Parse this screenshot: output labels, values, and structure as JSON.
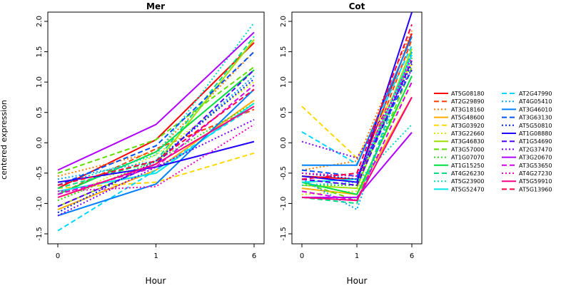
{
  "ylabel": "centered expression",
  "chart_data": [
    {
      "type": "line",
      "title": "Mer",
      "xlabel": "Hour",
      "ylabel": "centered expression",
      "x": [
        "0",
        "1",
        "6"
      ],
      "ylim": [
        -1.5,
        2.0
      ],
      "yticks": [
        "-1.5",
        "-1.0",
        "-0.5",
        "0.0",
        "0.5",
        "1.0",
        "1.5",
        "2.0"
      ],
      "series": [
        {
          "name": "AT5G08180",
          "values": [
            -0.75,
            0.05,
            1.65
          ]
        },
        {
          "name": "AT2G29890",
          "values": [
            -0.85,
            -0.1,
            0.55
          ]
        },
        {
          "name": "AT3G18160",
          "values": [
            -0.55,
            -0.15,
            1.5
          ]
        },
        {
          "name": "AT5G48600",
          "values": [
            -1.1,
            -0.45,
            0.7
          ]
        },
        {
          "name": "AT3G03920",
          "values": [
            -0.75,
            -0.65,
            -0.17
          ]
        },
        {
          "name": "AT3G22660",
          "values": [
            -0.95,
            -0.2,
            1.0
          ]
        },
        {
          "name": "AT3G46830",
          "values": [
            -1.05,
            -0.35,
            1.7
          ]
        },
        {
          "name": "AT3G57000",
          "values": [
            -0.5,
            0.05,
            1.25
          ]
        },
        {
          "name": "AT1G07070",
          "values": [
            -0.95,
            -0.3,
            0.65
          ]
        },
        {
          "name": "AT1G15250",
          "values": [
            -0.85,
            -0.15,
            1.2
          ]
        },
        {
          "name": "AT4G26230",
          "values": [
            -0.75,
            -0.3,
            1.75
          ]
        },
        {
          "name": "AT5G23900",
          "values": [
            -0.7,
            -0.2,
            1.98
          ]
        },
        {
          "name": "AT5G52470",
          "values": [
            -0.8,
            -0.5,
            0.65
          ]
        },
        {
          "name": "AT2G47990",
          "values": [
            -1.45,
            -0.45,
            0.6
          ]
        },
        {
          "name": "AT4G05410",
          "values": [
            -0.6,
            -0.3,
            1.1
          ]
        },
        {
          "name": "AT3G46010",
          "values": [
            -1.2,
            -0.68,
            0.88
          ]
        },
        {
          "name": "AT3G63130",
          "values": [
            -0.7,
            -0.05,
            1.5
          ]
        },
        {
          "name": "AT5G50810",
          "values": [
            -1.15,
            -0.3,
            1.05
          ]
        },
        {
          "name": "AT1G08880",
          "values": [
            -0.65,
            -0.4,
            0.02
          ]
        },
        {
          "name": "AT1G54690",
          "values": [
            -1.05,
            -0.35,
            1.2
          ]
        },
        {
          "name": "AT2G37470",
          "values": [
            -1.2,
            -0.4,
            0.38
          ]
        },
        {
          "name": "AT3G20670",
          "values": [
            -0.45,
            0.3,
            1.82
          ]
        },
        {
          "name": "AT3G53650",
          "values": [
            -0.85,
            -0.4,
            0.95
          ]
        },
        {
          "name": "AT4G27230",
          "values": [
            -0.8,
            -0.72,
            0.3
          ]
        },
        {
          "name": "AT5G59910",
          "values": [
            -0.9,
            -0.35,
            0.6
          ]
        },
        {
          "name": "AT5G13960",
          "values": [
            -0.7,
            -0.3,
            0.88
          ]
        }
      ]
    },
    {
      "type": "line",
      "title": "Cot",
      "xlabel": "Hour",
      "x": [
        "0",
        "1",
        "6"
      ],
      "ylim": [
        -1.5,
        2.0
      ],
      "yticks": [
        "-1.5",
        "-1.0",
        "-0.5",
        "0.0",
        "0.5",
        "1.0",
        "1.5",
        "2.0"
      ],
      "series": [
        {
          "name": "AT5G08180",
          "values": [
            -0.55,
            -0.6,
            1.8
          ]
        },
        {
          "name": "AT2G29890",
          "values": [
            -0.6,
            -0.7,
            1.7
          ]
        },
        {
          "name": "AT3G18160",
          "values": [
            -0.45,
            -0.3,
            1.85
          ]
        },
        {
          "name": "AT5G48600",
          "values": [
            -0.75,
            -0.85,
            0.75
          ]
        },
        {
          "name": "AT3G03920",
          "values": [
            0.6,
            -0.25,
            1.3
          ]
        },
        {
          "name": "AT3G22660",
          "values": [
            -0.85,
            -0.8,
            1.0
          ]
        },
        {
          "name": "AT3G46830",
          "values": [
            -0.7,
            -0.75,
            1.55
          ]
        },
        {
          "name": "AT3G57000",
          "values": [
            -0.65,
            -0.95,
            1.25
          ]
        },
        {
          "name": "AT1G07070",
          "values": [
            -0.7,
            -0.7,
            1.4
          ]
        },
        {
          "name": "AT1G15250",
          "values": [
            -0.65,
            -0.85,
            1.1
          ]
        },
        {
          "name": "AT4G26230",
          "values": [
            -0.9,
            -1.0,
            1.5
          ]
        },
        {
          "name": "AT5G23900",
          "values": [
            -0.7,
            -0.65,
            0.3
          ]
        },
        {
          "name": "AT5G52470",
          "values": [
            -0.65,
            -0.6,
            1.45
          ]
        },
        {
          "name": "AT2G47990",
          "values": [
            0.18,
            -0.35,
            1.6
          ]
        },
        {
          "name": "AT4G05410",
          "values": [
            -0.6,
            -1.1,
            1.5
          ]
        },
        {
          "name": "AT3G46010",
          "values": [
            -0.37,
            -0.37,
            1.75
          ]
        },
        {
          "name": "AT3G63130",
          "values": [
            -0.45,
            -0.55,
            1.2
          ]
        },
        {
          "name": "AT5G50810",
          "values": [
            -0.5,
            -0.6,
            1.3
          ]
        },
        {
          "name": "AT1G08880",
          "values": [
            -0.55,
            -0.65,
            2.15
          ]
        },
        {
          "name": "AT1G54690",
          "values": [
            -0.6,
            -0.7,
            1.35
          ]
        },
        {
          "name": "AT2G37470",
          "values": [
            0.02,
            -0.25,
            1.2
          ]
        },
        {
          "name": "AT3G20670",
          "values": [
            -0.9,
            -0.9,
            0.17
          ]
        },
        {
          "name": "AT3G53650",
          "values": [
            -0.8,
            -0.95,
            1.0
          ]
        },
        {
          "name": "AT4G27230",
          "values": [
            -0.5,
            -0.55,
            1.4
          ]
        },
        {
          "name": "AT5G59910",
          "values": [
            -0.9,
            -0.95,
            0.75
          ]
        },
        {
          "name": "AT5G13960",
          "values": [
            -0.6,
            -0.5,
            1.95
          ]
        }
      ]
    }
  ],
  "legend": [
    {
      "name": "AT5G08180",
      "color": "#ff0000",
      "dash": "solid"
    },
    {
      "name": "AT2G29890",
      "color": "#ff4000",
      "dash": "dashed"
    },
    {
      "name": "AT3G18160",
      "color": "#ff8000",
      "dash": "dotted"
    },
    {
      "name": "AT5G48600",
      "color": "#ffaa00",
      "dash": "solid"
    },
    {
      "name": "AT3G03920",
      "color": "#ffd800",
      "dash": "dashed"
    },
    {
      "name": "AT3G22660",
      "color": "#d4ee00",
      "dash": "dotted"
    },
    {
      "name": "AT3G46830",
      "color": "#a0e000",
      "dash": "solid"
    },
    {
      "name": "AT3G57000",
      "color": "#60dd00",
      "dash": "dashed"
    },
    {
      "name": "AT1G07070",
      "color": "#30dd20",
      "dash": "dotted"
    },
    {
      "name": "AT1G15250",
      "color": "#00dd40",
      "dash": "solid"
    },
    {
      "name": "AT4G26230",
      "color": "#00dd80",
      "dash": "dashed"
    },
    {
      "name": "AT5G23900",
      "color": "#00ddc0",
      "dash": "dotted"
    },
    {
      "name": "AT5G52470",
      "color": "#00e6e6",
      "dash": "solid"
    },
    {
      "name": "AT2G47990",
      "color": "#00d8ff",
      "dash": "dashed"
    },
    {
      "name": "AT4G05410",
      "color": "#00a8ff",
      "dash": "dotted"
    },
    {
      "name": "AT3G46010",
      "color": "#0080ff",
      "dash": "solid"
    },
    {
      "name": "AT3G63130",
      "color": "#0050ff",
      "dash": "dashed"
    },
    {
      "name": "AT5G50810",
      "color": "#0020ff",
      "dash": "dotted"
    },
    {
      "name": "AT1G08880",
      "color": "#2000ff",
      "dash": "solid"
    },
    {
      "name": "AT1G54690",
      "color": "#5000ff",
      "dash": "dashed"
    },
    {
      "name": "AT2G37470",
      "color": "#8000ff",
      "dash": "dotted"
    },
    {
      "name": "AT3G20670",
      "color": "#b000ff",
      "dash": "solid"
    },
    {
      "name": "AT3G53650",
      "color": "#d800e8",
      "dash": "dashed"
    },
    {
      "name": "AT4G27230",
      "color": "#ff00c0",
      "dash": "dotted"
    },
    {
      "name": "AT5G59910",
      "color": "#ff0080",
      "dash": "solid"
    },
    {
      "name": "AT5G13960",
      "color": "#ff0040",
      "dash": "dashed"
    }
  ]
}
